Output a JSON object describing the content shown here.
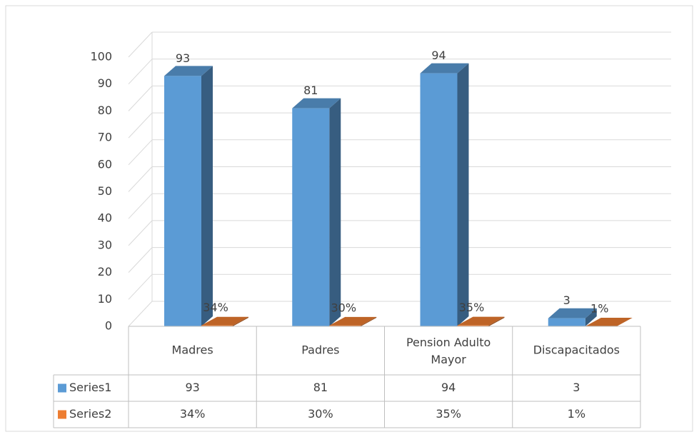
{
  "chart_data": {
    "type": "bar3d",
    "categories": [
      "Madres",
      "Padres",
      "Pension Adulto Mayor",
      "Discapacitados"
    ],
    "series": [
      {
        "name": "Series1",
        "color": "#5b9bd5",
        "values": [
          93,
          81,
          94,
          3
        ]
      },
      {
        "name": "Series2",
        "color": "#ed7d31",
        "values": [
          0.34,
          0.3,
          0.35,
          0.01
        ],
        "value_labels": [
          "34%",
          "30%",
          "35%",
          "1%"
        ]
      }
    ],
    "ylim": [
      0,
      100
    ],
    "yticks": [
      0,
      10,
      20,
      30,
      40,
      50,
      60,
      70,
      80,
      90,
      100
    ],
    "grid": true,
    "data_table": true
  }
}
